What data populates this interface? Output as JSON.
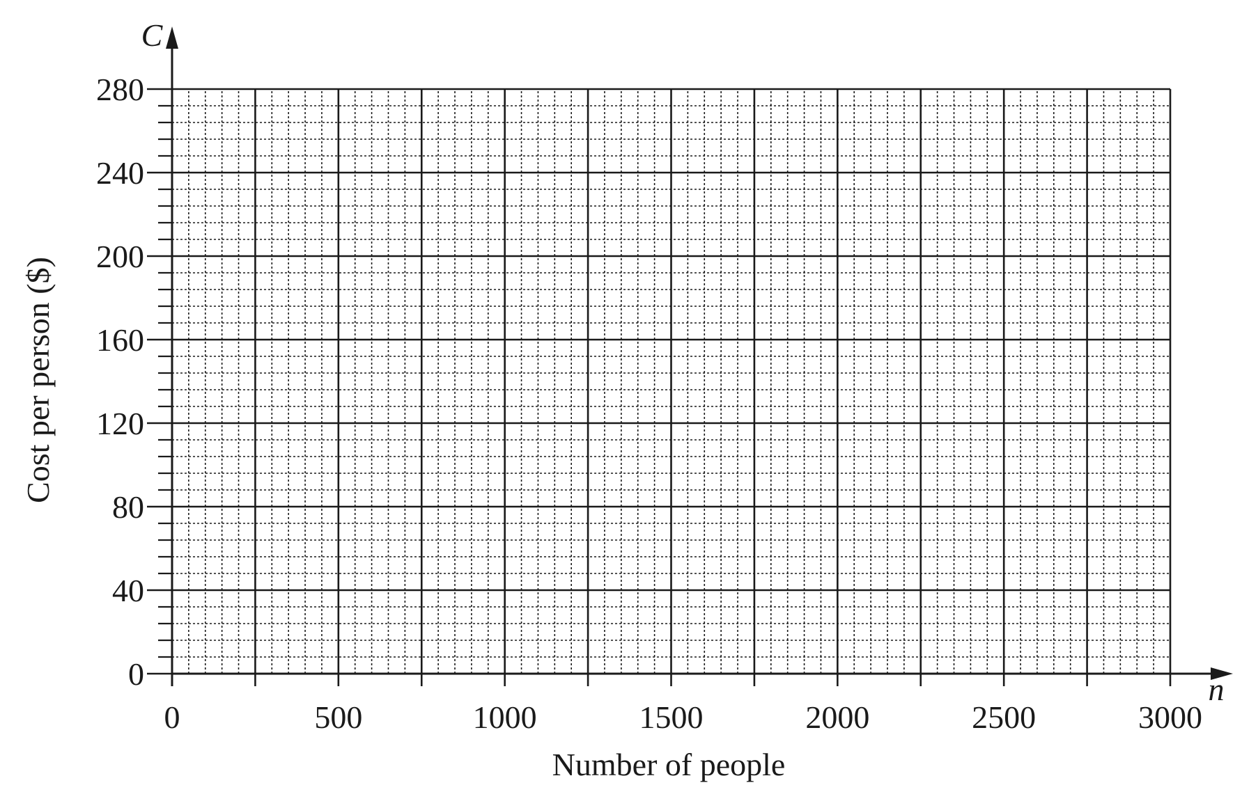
{
  "chart_data": {
    "type": "line",
    "title": "",
    "xlabel": "Number of people",
    "ylabel": "Cost per person ($)",
    "x_variable": "n",
    "y_variable": "C",
    "xlim": [
      0,
      3000
    ],
    "ylim": [
      0,
      280
    ],
    "x_ticks": [
      0,
      500,
      1000,
      1500,
      2000,
      2500,
      3000
    ],
    "x_tick_labels": [
      "0",
      "500",
      "1000",
      "1500",
      "2000",
      "2500",
      "3000"
    ],
    "y_ticks": [
      0,
      40,
      80,
      120,
      160,
      200,
      240,
      280
    ],
    "y_tick_labels": [
      "0",
      "40",
      "80",
      "120",
      "160",
      "200",
      "240",
      "280"
    ],
    "x_major_grid": 250,
    "x_minor_grid": 50,
    "y_major_grid": 40,
    "y_minor_grid": 8,
    "grid": true,
    "grid_style": "solid major lines, dotted minor lines",
    "series": [],
    "colors": {
      "ink": "#1a1a1a",
      "background": "#ffffff"
    }
  }
}
